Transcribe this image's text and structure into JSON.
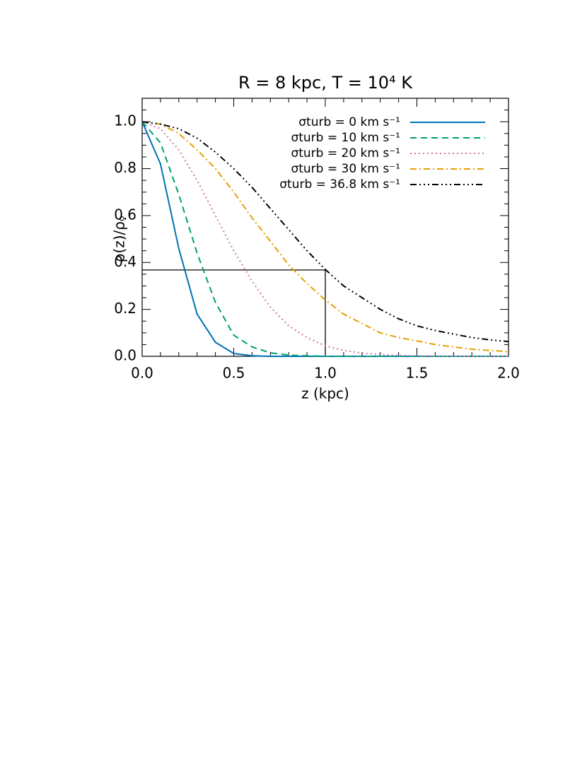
{
  "chart_data": {
    "type": "line",
    "title": "R = 8 kpc, T = 10⁴ K",
    "xlabel": "z (kpc)",
    "ylabel": "ρ(z)/ρₒ",
    "x": [
      0,
      0.1,
      0.2,
      0.3,
      0.4,
      0.5,
      0.6,
      0.7,
      0.8,
      0.9,
      1.0,
      1.1,
      1.2,
      1.3,
      1.4,
      1.5,
      1.6,
      1.7,
      1.8,
      1.9,
      2.0
    ],
    "series": [
      {
        "name": "σturb = 0 km s⁻¹",
        "color": "#0072b2",
        "linestyle": "solid",
        "values": [
          1.0,
          0.82,
          0.46,
          0.18,
          0.06,
          0.012,
          0.002,
          0,
          0,
          0,
          0,
          0,
          0,
          0,
          0,
          0,
          0,
          0,
          0,
          0,
          0
        ]
      },
      {
        "name": "σturb = 10 km s⁻¹",
        "color": "#009e73",
        "linestyle": "dashed",
        "values": [
          1.0,
          0.91,
          0.69,
          0.44,
          0.23,
          0.09,
          0.04,
          0.015,
          0.005,
          0.002,
          0,
          0,
          0,
          0,
          0,
          0,
          0,
          0,
          0,
          0,
          0
        ]
      },
      {
        "name": "σturb = 20 km s⁻¹",
        "color": "#cc79a7",
        "linestyle": "dotted",
        "values": [
          1.0,
          0.97,
          0.88,
          0.75,
          0.6,
          0.45,
          0.32,
          0.21,
          0.13,
          0.08,
          0.045,
          0.025,
          0.014,
          0.008,
          0.004,
          0.002,
          0.001,
          0,
          0,
          0,
          0
        ]
      },
      {
        "name": "σturb = 30 km s⁻¹",
        "color": "#e69f00",
        "linestyle": "dashdot",
        "values": [
          1.0,
          0.99,
          0.95,
          0.88,
          0.8,
          0.7,
          0.59,
          0.49,
          0.39,
          0.31,
          0.24,
          0.18,
          0.14,
          0.1,
          0.08,
          0.066,
          0.05,
          0.04,
          0.03,
          0.025,
          0.02
        ]
      },
      {
        "name": "σturb = 36.8 km s⁻¹",
        "color": "#000000",
        "linestyle": "dashdotdotdot",
        "values": [
          1.0,
          0.99,
          0.97,
          0.93,
          0.87,
          0.8,
          0.72,
          0.63,
          0.54,
          0.45,
          0.37,
          0.3,
          0.25,
          0.2,
          0.16,
          0.13,
          0.11,
          0.095,
          0.08,
          0.07,
          0.063
        ]
      }
    ],
    "reference": {
      "x": 1.0,
      "y": 0.368
    },
    "xlim": [
      0,
      2.0
    ],
    "ylim": [
      0,
      1.1
    ],
    "xticks": [
      {
        "value": 0,
        "label": "0.0"
      },
      {
        "value": 0.5,
        "label": "0.5"
      },
      {
        "value": 1.0,
        "label": "1.0"
      },
      {
        "value": 1.5,
        "label": "1.5"
      },
      {
        "value": 2.0,
        "label": "2.0"
      }
    ],
    "yticks": [
      {
        "value": 0,
        "label": "0.0"
      },
      {
        "value": 0.2,
        "label": "0.2"
      },
      {
        "value": 0.4,
        "label": "0.4"
      },
      {
        "value": 0.6,
        "label": "0.6"
      },
      {
        "value": 0.8,
        "label": "0.8"
      },
      {
        "value": 1.0,
        "label": "1.0"
      }
    ],
    "xminorticks": [
      0.1,
      0.2,
      0.3,
      0.4,
      0.6,
      0.7,
      0.8,
      0.9,
      1.1,
      1.2,
      1.3,
      1.4,
      1.6,
      1.7,
      1.8,
      1.9
    ],
    "yminorticks": [
      0.05,
      0.1,
      0.15,
      0.25,
      0.3,
      0.35,
      0.45,
      0.5,
      0.55,
      0.65,
      0.7,
      0.75,
      0.85,
      0.9,
      0.95,
      1.05
    ],
    "legend": "upper right",
    "grid": false
  }
}
